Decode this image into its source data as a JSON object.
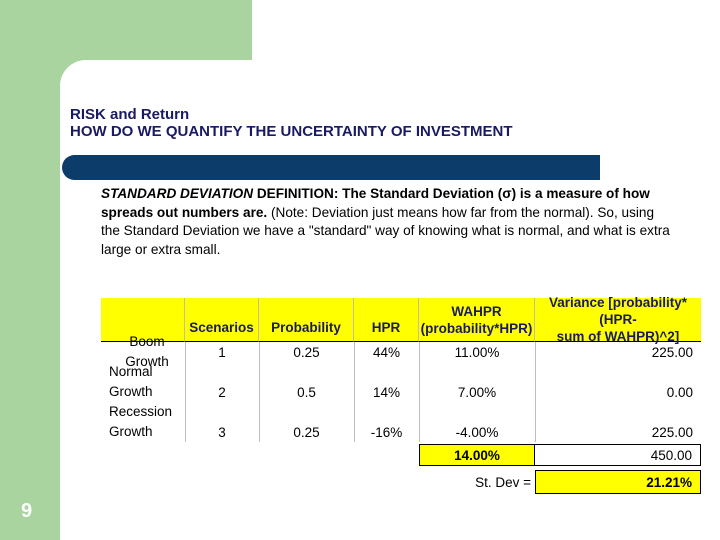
{
  "title": {
    "line1": "RISK and Return",
    "line2": "HOW DO WE QUANTIFY THE UNCERTAINTY OF INVESTMENT"
  },
  "definition": {
    "term": "STANDARD DEVIATION",
    "label": " DEFINITION:",
    "bold_text": " The Standard Deviation (σ) is a measure of how spreads out numbers are.",
    "note": " (Note: Deviation just means how far from the normal).  So, using the Standard Deviation we have a \"standard\" way of knowing what is normal, and what is extra large or extra small."
  },
  "table": {
    "headers": {
      "scenarios": "Scenarios",
      "probability": "Probability",
      "hpr": "HPR",
      "wahpr_1": "WAHPR",
      "wahpr_2": "(probability*HPR)",
      "variance_1": "Variance [probability*(HPR-",
      "variance_2": "sum of WAHPR)^2]"
    },
    "rows": [
      {
        "label_1": "Boom Growth",
        "label_2": "",
        "scenario": "1",
        "probability": "0.25",
        "hpr": "44%",
        "wahpr": "11.00%",
        "variance": "225.00"
      },
      {
        "label_1": "Normal",
        "label_2": "Growth",
        "scenario": "2",
        "probability": "0.5",
        "hpr": "14%",
        "wahpr": "7.00%",
        "variance": "0.00"
      },
      {
        "label_1": "Recession",
        "label_2": "Growth",
        "scenario": "3",
        "probability": "0.25",
        "hpr": "-16%",
        "wahpr": "-4.00%",
        "variance": "225.00"
      }
    ],
    "sum_wahpr": "14.00%",
    "sum_variance": "450.00",
    "st_dev_label": "St. Dev =",
    "st_dev_value": "21.21%"
  },
  "slide_number": "9",
  "colors": {
    "green": "#a9d4a0",
    "navy": "#0c3c6a",
    "highlight": "#ffff00",
    "title_text": "#1a1a64"
  }
}
